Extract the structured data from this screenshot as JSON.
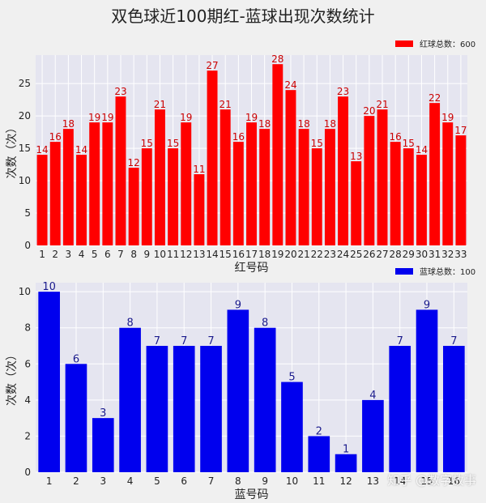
{
  "title": "双色球近100期红-蓝球出现次数统计",
  "watermark": "知乎 @数字故事",
  "chart_data": [
    {
      "type": "bar",
      "name": "red",
      "color": "#ff0000",
      "label_color": "#cc0000",
      "categories": [
        "1",
        "2",
        "3",
        "4",
        "5",
        "6",
        "7",
        "8",
        "9",
        "10",
        "11",
        "12",
        "13",
        "14",
        "15",
        "16",
        "17",
        "18",
        "19",
        "20",
        "21",
        "22",
        "23",
        "24",
        "25",
        "26",
        "27",
        "28",
        "29",
        "30",
        "31",
        "32",
        "33"
      ],
      "values": [
        14,
        16,
        18,
        14,
        19,
        19,
        23,
        12,
        15,
        21,
        15,
        19,
        11,
        27,
        21,
        16,
        19,
        18,
        28,
        24,
        18,
        15,
        18,
        23,
        13,
        20,
        21,
        16,
        15,
        14,
        22,
        19,
        17
      ],
      "xlabel": "红号码",
      "ylabel": "次数（次）",
      "ylim": [
        0,
        29.4
      ],
      "yticks": [
        0,
        5,
        10,
        15,
        20,
        25
      ],
      "legend": "红球总数：600",
      "legend_position": "top-right",
      "grid": true
    },
    {
      "type": "bar",
      "name": "blue",
      "color": "#0000ee",
      "label_color": "#1a1a8c",
      "categories": [
        "1",
        "2",
        "3",
        "4",
        "5",
        "6",
        "7",
        "8",
        "9",
        "10",
        "11",
        "12",
        "13",
        "14",
        "15",
        "16"
      ],
      "values": [
        10,
        6,
        3,
        8,
        7,
        7,
        7,
        9,
        8,
        5,
        2,
        1,
        4,
        7,
        9,
        7
      ],
      "xlabel": "蓝号码",
      "ylabel": "次数（次）",
      "ylim": [
        0,
        10.5
      ],
      "yticks": [
        0,
        2,
        4,
        6,
        8,
        10
      ],
      "legend": "蓝球总数：100",
      "legend_position": "top-right",
      "grid": true
    }
  ]
}
